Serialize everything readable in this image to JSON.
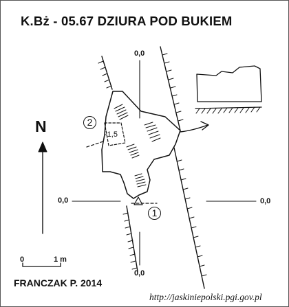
{
  "title": "K.Bż - 05.67  DZIURA POD BUKIEM",
  "north_label": "N",
  "datum_labels": {
    "top": "0,0",
    "bottom": "0,0",
    "left": "0,0",
    "right": "0,0"
  },
  "depth_label": "-1,5",
  "points": {
    "one": "1",
    "two": "2"
  },
  "scale": {
    "start": "0",
    "end": "1 m"
  },
  "author": "FRANCZAK P. 2014",
  "url": "http://jaskiniepolski.pgi.gov.pl"
}
